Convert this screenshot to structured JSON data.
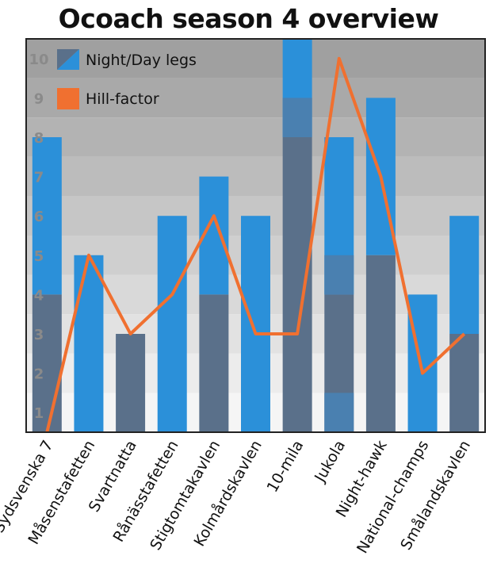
{
  "chart_data": {
    "type": "bar",
    "title": "Ocoach season 4 overview",
    "xlabel": "",
    "ylabel": "",
    "ylim": [
      0,
      10
    ],
    "yticks": [
      1,
      2,
      3,
      4,
      5,
      6,
      7,
      8,
      9,
      10
    ],
    "categories": [
      "Sydsvenska 7",
      "Måsenstafetten",
      "Svartnatta",
      "Rånässtafetten",
      "Stigtomtakavlen",
      "Kolmårdskavlen",
      "10-mila",
      "Jukola",
      "Night-hawk",
      "National-champs",
      "Smålandskavlen"
    ],
    "series": [
      {
        "name": "Night/Day legs",
        "kind": "stacked-bar",
        "night": [
          3.5,
          0,
          2.5,
          0,
          3.5,
          0,
          7.5,
          3.5,
          4.5,
          0,
          2.5
        ],
        "total": [
          7.5,
          4.5,
          2.5,
          5.5,
          6.5,
          5.5,
          10,
          7.5,
          8.5,
          3.5,
          5.5
        ]
      },
      {
        "name": "Hill-factor",
        "kind": "line",
        "values": [
          0,
          4.5,
          2.5,
          3.5,
          5.5,
          2.5,
          2.5,
          9.5,
          6.5,
          1.5,
          2.5
        ]
      }
    ],
    "grid": "alternating horizontal bands",
    "legend": "top-left",
    "colors": {
      "night": "#5a708a",
      "day": "#2b90d9",
      "overlap": "#4a80b0",
      "line": "#f07030"
    }
  }
}
